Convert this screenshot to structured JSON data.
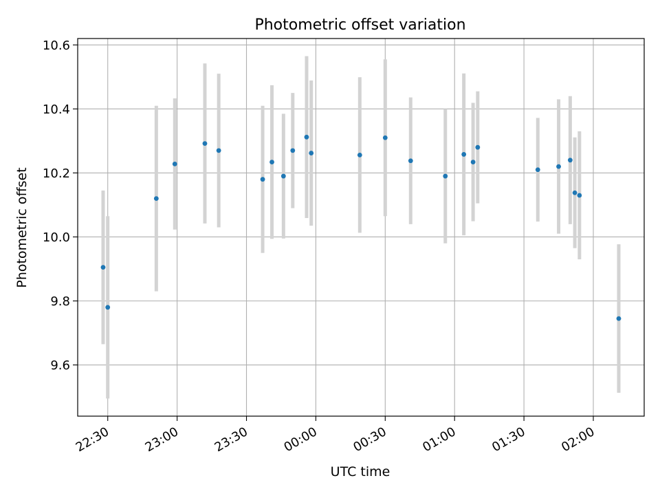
{
  "chart_data": {
    "type": "scatter",
    "title": "Photometric offset variation",
    "xlabel": "UTC time",
    "ylabel": "Photometric offset",
    "x_axis_type": "time",
    "xlim": [
      "22:17",
      "02:22"
    ],
    "ylim": [
      9.44,
      10.62
    ],
    "x_ticks": [
      "22:30",
      "23:00",
      "23:30",
      "00:00",
      "00:30",
      "01:00",
      "01:30",
      "02:00"
    ],
    "y_ticks": [
      "9.6",
      "9.8",
      "10.0",
      "10.2",
      "10.4",
      "10.6"
    ],
    "grid": true,
    "colors": {
      "point": "#1f77b4",
      "errorbar": "#d3d3d3",
      "grid": "#b0b0b0"
    },
    "series": [
      {
        "points": [
          {
            "x": "22:28",
            "y": 9.905,
            "err": 0.24
          },
          {
            "x": "22:30",
            "y": 9.78,
            "err": 0.285
          },
          {
            "x": "22:51",
            "y": 10.12,
            "err": 0.29
          },
          {
            "x": "22:59",
            "y": 10.228,
            "err": 0.205
          },
          {
            "x": "23:12",
            "y": 10.292,
            "err": 0.25
          },
          {
            "x": "23:18",
            "y": 10.27,
            "err": 0.24
          },
          {
            "x": "23:37",
            "y": 10.18,
            "err": 0.23
          },
          {
            "x": "23:41",
            "y": 10.234,
            "err": 0.24
          },
          {
            "x": "23:46",
            "y": 10.19,
            "err": 0.195
          },
          {
            "x": "23:50",
            "y": 10.27,
            "err": 0.18
          },
          {
            "x": "23:56",
            "y": 10.312,
            "err": 0.253
          },
          {
            "x": "23:58",
            "y": 10.262,
            "err": 0.227
          },
          {
            "x": "00:19",
            "y": 10.256,
            "err": 0.243
          },
          {
            "x": "00:30",
            "y": 10.31,
            "err": 0.245
          },
          {
            "x": "00:41",
            "y": 10.238,
            "err": 0.198
          },
          {
            "x": "00:56",
            "y": 10.19,
            "err": 0.21
          },
          {
            "x": "01:04",
            "y": 10.258,
            "err": 0.253
          },
          {
            "x": "01:08",
            "y": 10.234,
            "err": 0.185
          },
          {
            "x": "01:10",
            "y": 10.28,
            "err": 0.175
          },
          {
            "x": "01:36",
            "y": 10.21,
            "err": 0.162
          },
          {
            "x": "01:45",
            "y": 10.22,
            "err": 0.21
          },
          {
            "x": "01:50",
            "y": 10.24,
            "err": 0.2
          },
          {
            "x": "01:52",
            "y": 10.138,
            "err": 0.173
          },
          {
            "x": "01:54",
            "y": 10.13,
            "err": 0.2
          },
          {
            "x": "02:11",
            "y": 9.745,
            "err": 0.232
          }
        ]
      }
    ]
  }
}
